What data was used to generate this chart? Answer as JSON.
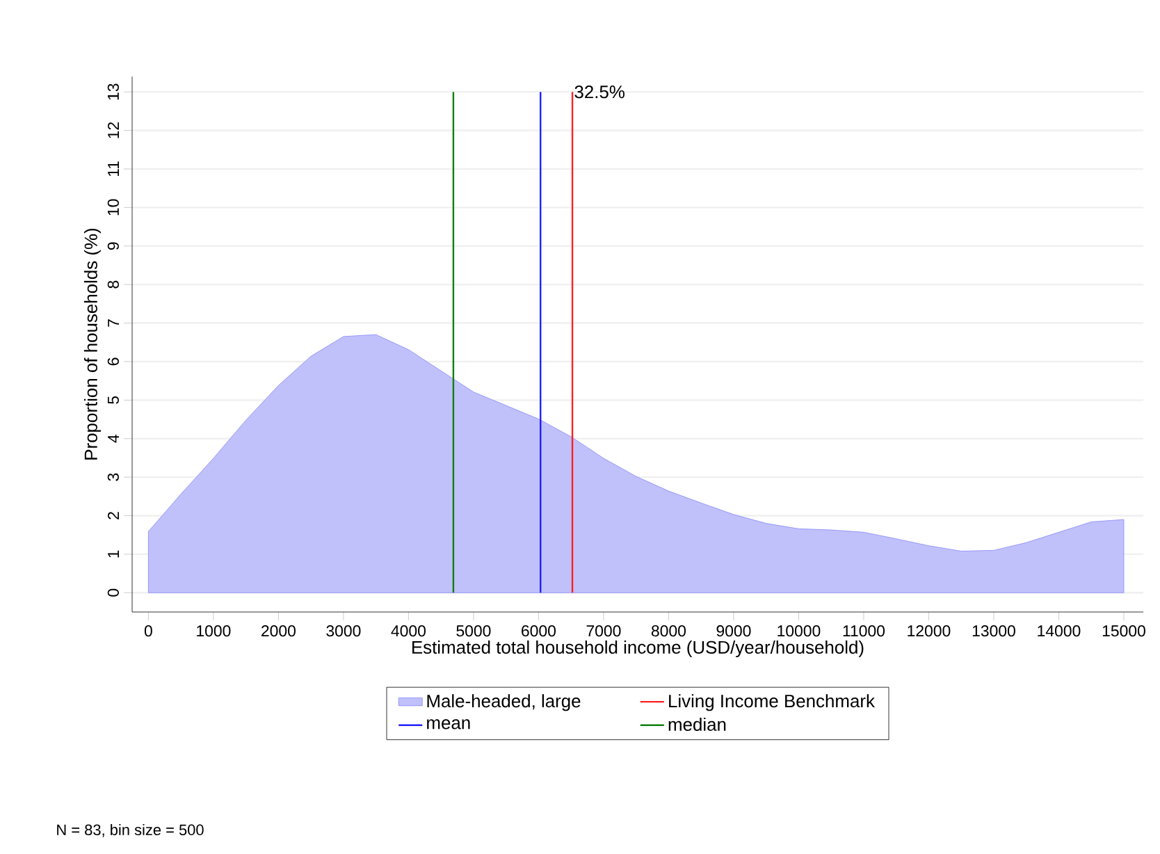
{
  "chart_data": {
    "type": "area",
    "xlabel": "Estimated total household income (USD/year/household)",
    "ylabel": "Proportion of households (%)",
    "x": [
      0,
      500,
      1000,
      1500,
      2000,
      2500,
      3000,
      3500,
      4000,
      4500,
      5000,
      5500,
      6000,
      6500,
      7000,
      7500,
      8000,
      8500,
      9000,
      9500,
      10000,
      10500,
      11000,
      11500,
      12000,
      12500,
      13000,
      13500,
      14000,
      14500,
      15000
    ],
    "series": [
      {
        "name": "Male-headed, large",
        "color": "#c0c1fa",
        "values": [
          1.59,
          2.56,
          3.49,
          4.48,
          5.38,
          6.14,
          6.65,
          6.7,
          6.31,
          5.76,
          5.21,
          4.86,
          4.51,
          4.05,
          3.49,
          3.02,
          2.64,
          2.33,
          2.03,
          1.8,
          1.66,
          1.63,
          1.57,
          1.4,
          1.22,
          1.08,
          1.1,
          1.3,
          1.57,
          1.84,
          1.9
        ]
      }
    ],
    "xlim": [
      -250,
      15300
    ],
    "xticks": [
      0,
      1000,
      2000,
      3000,
      4000,
      5000,
      6000,
      7000,
      8000,
      9000,
      10000,
      11000,
      12000,
      13000,
      14000,
      15000
    ],
    "ylim": [
      -0.5,
      13.4
    ],
    "yticks": [
      0,
      1,
      2,
      3,
      4,
      5,
      6,
      7,
      8,
      9,
      10,
      11,
      12,
      13
    ],
    "ref_lines": [
      {
        "axis": "x",
        "value": 6520,
        "label": "Living Income Benchmark",
        "color": "#ff2020"
      },
      {
        "axis": "x",
        "value": 6030,
        "label": "mean",
        "color": "#2020ff"
      },
      {
        "axis": "x",
        "value": 4690,
        "label": "median",
        "color": "#108010"
      }
    ],
    "annotations": [
      {
        "text": "32.5%",
        "x": 6520,
        "y": 13
      },
      "N = 83, bin size = 500"
    ],
    "grid": "y",
    "legend": "bottom"
  }
}
